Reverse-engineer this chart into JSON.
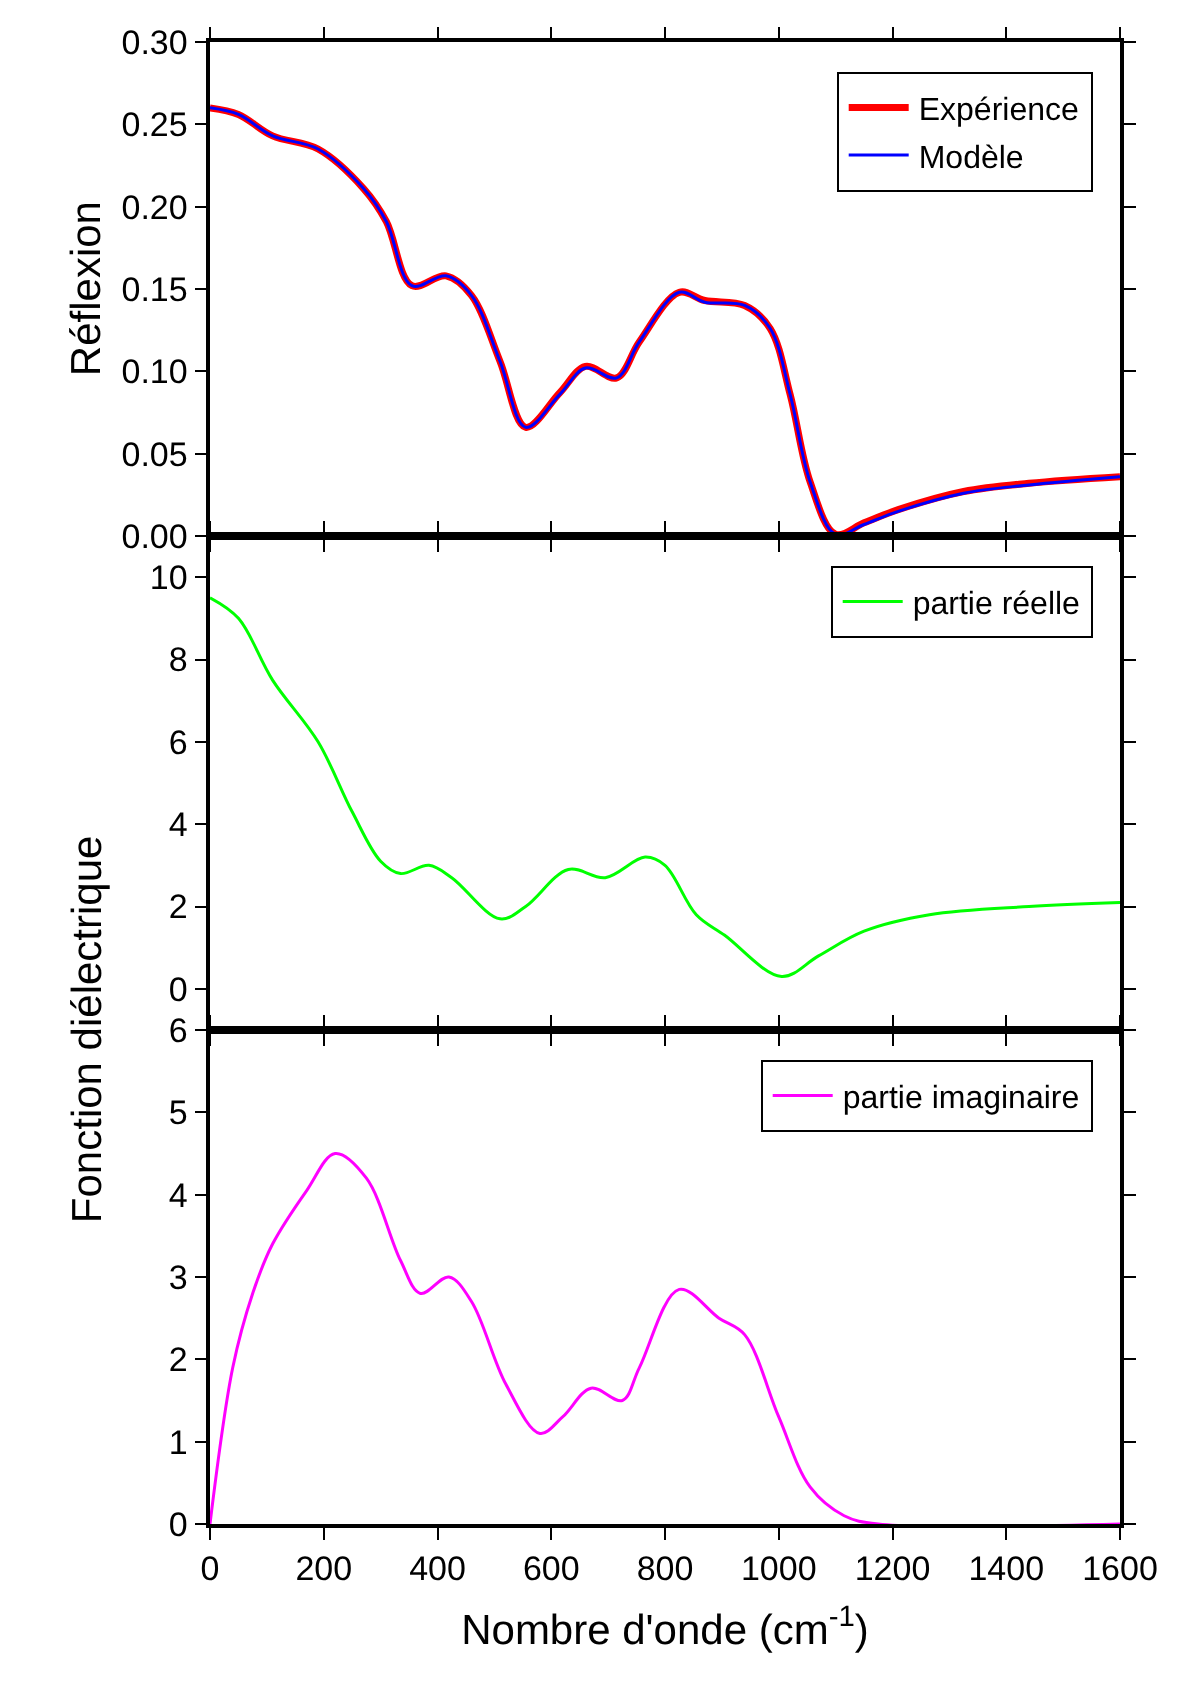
{
  "chart_data": [
    {
      "type": "line",
      "ylabel": "Réflexion",
      "legend": "top right",
      "tick_labels": "y",
      "xlim": [
        0,
        1600
      ],
      "xticks": [
        0,
        200,
        400,
        600,
        800,
        1000,
        1200,
        1400,
        1600
      ],
      "ylim": [
        0,
        0.3
      ],
      "yticks": [
        {
          "value": 0,
          "label": "0.00"
        },
        {
          "value": 0.05,
          "label": "0.05"
        },
        {
          "value": 0.1,
          "label": "0.10"
        },
        {
          "value": 0.15,
          "label": "0.15"
        },
        {
          "value": 0.2,
          "label": "0.20"
        },
        {
          "value": 0.25,
          "label": "0.25"
        },
        {
          "value": 0.3,
          "label": "0.30"
        }
      ],
      "x": [
        0,
        50,
        110,
        190,
        270,
        310,
        355,
        415,
        460,
        510,
        555,
        615,
        660,
        715,
        755,
        825,
        870,
        940,
        985,
        1020,
        1055,
        1100,
        1150,
        1210,
        1325,
        1440,
        1600
      ],
      "series": [
        {
          "name": "Expérience",
          "color": "#ff0000",
          "values": [
            0.26,
            0.256,
            0.243,
            0.235,
            0.211,
            0.191,
            0.152,
            0.158,
            0.146,
            0.106,
            0.066,
            0.087,
            0.103,
            0.096,
            0.118,
            0.148,
            0.143,
            0.14,
            0.126,
            0.086,
            0.033,
            0.001,
            0.008,
            0.016,
            0.027,
            0.032,
            0.036
          ]
        },
        {
          "name": "Modèle",
          "color": "#0000ff",
          "values": [
            0.26,
            0.256,
            0.243,
            0.235,
            0.211,
            0.191,
            0.152,
            0.158,
            0.146,
            0.106,
            0.066,
            0.086,
            0.102,
            0.096,
            0.118,
            0.148,
            0.142,
            0.14,
            0.126,
            0.086,
            0.033,
            0.001,
            0.007,
            0.015,
            0.026,
            0.031,
            0.036
          ]
        }
      ]
    },
    {
      "type": "line",
      "ylabel": "Fonction diélectrique",
      "legend": "top right",
      "tick_labels": "y",
      "xlim": [
        0,
        1600
      ],
      "xticks": [
        0,
        200,
        400,
        600,
        800,
        1000,
        1200,
        1400,
        1600
      ],
      "ylim": [
        -1,
        11
      ],
      "yticks": [
        0,
        2,
        4,
        6,
        8,
        10
      ],
      "x": [
        0,
        50,
        110,
        190,
        250,
        300,
        335,
        385,
        425,
        510,
        555,
        630,
        695,
        765,
        800,
        855,
        905,
        1005,
        1070,
        1150,
        1265,
        1440,
        1600
      ],
      "series": [
        {
          "name": "partie réelle",
          "color": "#00ff00",
          "values": [
            9.5,
            9.0,
            7.5,
            6.0,
            4.3,
            3.1,
            2.8,
            3.0,
            2.7,
            1.7,
            2.0,
            2.9,
            2.7,
            3.2,
            3.0,
            1.8,
            1.3,
            0.3,
            0.8,
            1.4,
            1.8,
            2.0,
            2.1
          ]
        }
      ]
    },
    {
      "type": "line",
      "xlabel": "Nombre d'onde (cm$^{-1}$)",
      "legend": "top right",
      "xlim": [
        0,
        1600
      ],
      "xticks": [
        0,
        200,
        400,
        600,
        800,
        1000,
        1200,
        1400,
        1600
      ],
      "ylim": [
        0,
        6
      ],
      "yticks": [
        0,
        1,
        2,
        3,
        4,
        5,
        6
      ],
      "x": [
        0,
        40,
        75,
        110,
        170,
        220,
        275,
        335,
        370,
        420,
        460,
        520,
        580,
        620,
        670,
        725,
        755,
        825,
        895,
        940,
        1000,
        1055,
        1115,
        1175,
        1600
      ],
      "series": [
        {
          "name": "partie imaginaire",
          "color": "#ff00ff",
          "values": [
            0,
            1.9,
            2.8,
            3.4,
            4.05,
            4.5,
            4.2,
            3.2,
            2.8,
            3.0,
            2.7,
            1.7,
            1.1,
            1.3,
            1.65,
            1.5,
            1.9,
            2.85,
            2.5,
            2.3,
            1.3,
            0.45,
            0.1,
            0,
            0
          ]
        }
      ]
    }
  ]
}
